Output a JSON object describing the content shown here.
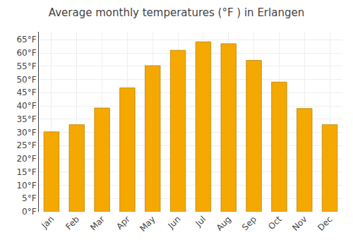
{
  "chart_data": {
    "type": "bar",
    "title": "Average monthly temperatures (°F ) in Erlangen",
    "categories": [
      "Jan",
      "Feb",
      "Mar",
      "Apr",
      "May",
      "Jun",
      "Jul",
      "Aug",
      "Sep",
      "Oct",
      "Nov",
      "Dec"
    ],
    "values": [
      30.2,
      32.9,
      39.2,
      46.8,
      55.2,
      61.0,
      64.2,
      63.5,
      57.2,
      49.0,
      39.0,
      32.9
    ],
    "color": "#F5A800",
    "ylim": [
      0,
      68
    ],
    "yticks": [
      {
        "value": 0,
        "label": "0°F"
      },
      {
        "value": 5,
        "label": "5°F"
      },
      {
        "value": 10,
        "label": "10°F"
      },
      {
        "value": 15,
        "label": "15°F"
      },
      {
        "value": 20,
        "label": "20°F"
      },
      {
        "value": 25,
        "label": "25°F"
      },
      {
        "value": 30,
        "label": "30°F"
      },
      {
        "value": 35,
        "label": "35°F"
      },
      {
        "value": 40,
        "label": "40°F"
      },
      {
        "value": 45,
        "label": "45°F"
      },
      {
        "value": 50,
        "label": "50°F"
      },
      {
        "value": 55,
        "label": "55°F"
      },
      {
        "value": 60,
        "label": "60°F"
      },
      {
        "value": 65,
        "label": "65°F"
      }
    ],
    "grid": true
  }
}
